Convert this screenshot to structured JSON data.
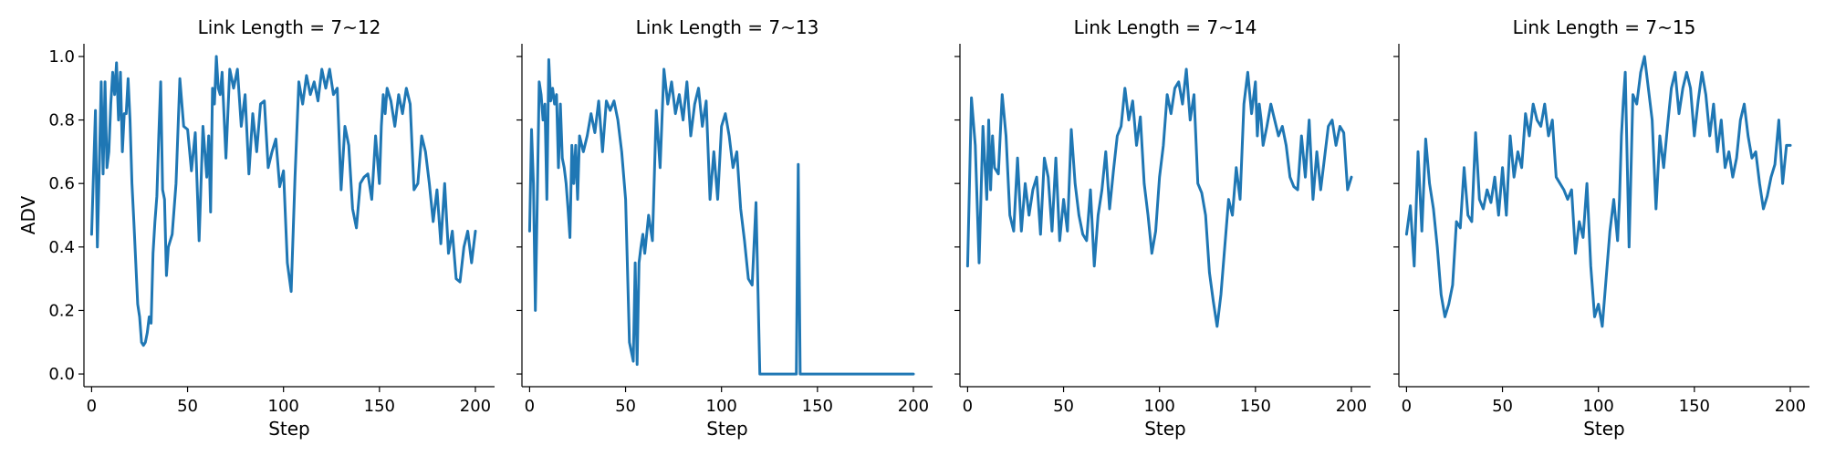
{
  "chart_data": [
    {
      "type": "line",
      "title": "Link Length = 7~12",
      "xlabel": "Step",
      "ylabel": "ADV",
      "xlim": [
        -4,
        210
      ],
      "ylim": [
        -0.04,
        1.04
      ],
      "xticks": [
        0,
        50,
        100,
        150,
        200
      ],
      "yticks": [
        0.0,
        0.2,
        0.4,
        0.6,
        0.8,
        1.0
      ],
      "xtick_labels": [
        "0",
        "50",
        "100",
        "150",
        "200"
      ],
      "ytick_labels": [
        "0.0",
        "0.2",
        "0.4",
        "0.6",
        "0.8",
        "1.0"
      ],
      "color": "#1f77b4",
      "series": [
        {
          "x": [
            0,
            2,
            3,
            4,
            5,
            6,
            7,
            8,
            9,
            10,
            11,
            12,
            13,
            14,
            15,
            16,
            17,
            18,
            19,
            20,
            21,
            22,
            23,
            24,
            25,
            26,
            27,
            28,
            29,
            30,
            31,
            32,
            33,
            34,
            35,
            36,
            37,
            38,
            39,
            40,
            42,
            44,
            46,
            48,
            50,
            52,
            54,
            56,
            58,
            60,
            61,
            62,
            63,
            64,
            65,
            66,
            67,
            68,
            70,
            72,
            74,
            76,
            78,
            80,
            82,
            84,
            86,
            88,
            90,
            92,
            94,
            96,
            98,
            100,
            102,
            104,
            106,
            108,
            110,
            112,
            114,
            116,
            118,
            120,
            122,
            124,
            126,
            128,
            130,
            132,
            134,
            136,
            138,
            140,
            142,
            144,
            146,
            148,
            150,
            151,
            152,
            153,
            154,
            156,
            158,
            160,
            162,
            164,
            166,
            168,
            170,
            172,
            174,
            176,
            178,
            180,
            182,
            184,
            186,
            188,
            190,
            192,
            194,
            196,
            198,
            200
          ],
          "values": [
            0.44,
            0.83,
            0.4,
            0.65,
            0.92,
            0.63,
            0.92,
            0.65,
            0.7,
            0.85,
            0.95,
            0.88,
            0.98,
            0.8,
            0.95,
            0.7,
            0.82,
            0.82,
            0.93,
            0.8,
            0.6,
            0.48,
            0.35,
            0.22,
            0.18,
            0.1,
            0.09,
            0.1,
            0.13,
            0.18,
            0.16,
            0.38,
            0.48,
            0.56,
            0.75,
            0.92,
            0.58,
            0.55,
            0.31,
            0.4,
            0.44,
            0.6,
            0.93,
            0.78,
            0.77,
            0.64,
            0.76,
            0.42,
            0.78,
            0.62,
            0.75,
            0.51,
            0.9,
            0.85,
            1.0,
            0.9,
            0.88,
            0.95,
            0.68,
            0.96,
            0.9,
            0.96,
            0.78,
            0.88,
            0.63,
            0.82,
            0.7,
            0.85,
            0.86,
            0.65,
            0.7,
            0.74,
            0.59,
            0.64,
            0.35,
            0.26,
            0.62,
            0.92,
            0.85,
            0.94,
            0.88,
            0.92,
            0.86,
            0.96,
            0.9,
            0.96,
            0.88,
            0.9,
            0.58,
            0.78,
            0.72,
            0.52,
            0.46,
            0.6,
            0.62,
            0.63,
            0.55,
            0.75,
            0.6,
            0.78,
            0.88,
            0.82,
            0.9,
            0.86,
            0.78,
            0.88,
            0.82,
            0.9,
            0.85,
            0.58,
            0.6,
            0.75,
            0.7,
            0.6,
            0.48,
            0.58,
            0.41,
            0.6,
            0.38,
            0.45,
            0.3,
            0.29,
            0.4,
            0.45,
            0.35,
            0.45
          ]
        }
      ]
    },
    {
      "type": "line",
      "title": "Link Length = 7~13",
      "xlabel": "Step",
      "ylabel": "",
      "xlim": [
        -4,
        210
      ],
      "ylim": [
        -0.04,
        1.04
      ],
      "xticks": [
        0,
        50,
        100,
        150,
        200
      ],
      "yticks": [
        0.0,
        0.2,
        0.4,
        0.6,
        0.8,
        1.0
      ],
      "xtick_labels": [
        "0",
        "50",
        "100",
        "150",
        "200"
      ],
      "ytick_labels": [],
      "color": "#1f77b4",
      "series": [
        {
          "x": [
            0,
            1,
            2,
            3,
            4,
            5,
            6,
            7,
            8,
            9,
            10,
            11,
            12,
            13,
            14,
            15,
            16,
            17,
            18,
            19,
            20,
            21,
            22,
            23,
            24,
            25,
            26,
            28,
            30,
            32,
            34,
            36,
            38,
            40,
            42,
            44,
            46,
            48,
            50,
            52,
            54,
            55,
            56,
            57,
            58,
            59,
            60,
            62,
            64,
            66,
            68,
            70,
            72,
            74,
            76,
            78,
            80,
            82,
            84,
            86,
            88,
            90,
            92,
            94,
            96,
            98,
            100,
            102,
            104,
            106,
            108,
            110,
            112,
            114,
            116,
            118,
            120,
            122,
            124,
            125,
            126,
            127,
            128,
            129,
            130,
            132,
            134,
            136,
            138,
            139,
            140,
            141,
            142,
            144,
            150,
            160,
            170,
            180,
            190,
            200
          ],
          "values": [
            0.45,
            0.77,
            0.6,
            0.2,
            0.55,
            0.92,
            0.88,
            0.8,
            0.85,
            0.55,
            0.99,
            0.86,
            0.9,
            0.85,
            0.88,
            0.65,
            0.85,
            0.68,
            0.65,
            0.6,
            0.52,
            0.43,
            0.72,
            0.6,
            0.72,
            0.55,
            0.75,
            0.7,
            0.75,
            0.82,
            0.76,
            0.86,
            0.7,
            0.86,
            0.83,
            0.86,
            0.8,
            0.7,
            0.55,
            0.1,
            0.04,
            0.35,
            0.03,
            0.35,
            0.4,
            0.44,
            0.38,
            0.5,
            0.42,
            0.83,
            0.65,
            0.96,
            0.85,
            0.92,
            0.82,
            0.88,
            0.8,
            0.92,
            0.75,
            0.85,
            0.9,
            0.78,
            0.86,
            0.55,
            0.7,
            0.55,
            0.78,
            0.82,
            0.75,
            0.65,
            0.7,
            0.52,
            0.42,
            0.3,
            0.28,
            0.54,
            0.0,
            0.0,
            0.0,
            0.0,
            0.0,
            0.0,
            0.0,
            0.0,
            0.0,
            0.0,
            0.0,
            0.0,
            0.0,
            0.0,
            0.66,
            0.0,
            0.0,
            0.0,
            0.0,
            0.0,
            0.0,
            0.0,
            0.0,
            0.0
          ]
        }
      ]
    },
    {
      "type": "line",
      "title": "Link Length = 7~14",
      "xlabel": "Step",
      "ylabel": "",
      "xlim": [
        -4,
        210
      ],
      "ylim": [
        -0.04,
        1.04
      ],
      "xticks": [
        0,
        50,
        100,
        150,
        200
      ],
      "yticks": [
        0.0,
        0.2,
        0.4,
        0.6,
        0.8,
        1.0
      ],
      "xtick_labels": [
        "0",
        "50",
        "100",
        "150",
        "200"
      ],
      "ytick_labels": [],
      "color": "#1f77b4",
      "series": [
        {
          "x": [
            0,
            2,
            4,
            6,
            8,
            10,
            11,
            12,
            13,
            14,
            16,
            18,
            20,
            22,
            24,
            26,
            28,
            30,
            32,
            34,
            36,
            38,
            40,
            42,
            44,
            46,
            48,
            50,
            52,
            54,
            56,
            58,
            60,
            62,
            64,
            66,
            68,
            70,
            72,
            74,
            76,
            78,
            80,
            82,
            84,
            86,
            88,
            90,
            92,
            94,
            96,
            98,
            100,
            102,
            104,
            106,
            108,
            110,
            112,
            114,
            116,
            118,
            120,
            122,
            124,
            126,
            128,
            130,
            132,
            134,
            136,
            138,
            140,
            142,
            144,
            146,
            148,
            150,
            151,
            152,
            153,
            154,
            156,
            158,
            160,
            162,
            164,
            166,
            168,
            170,
            172,
            174,
            176,
            178,
            180,
            182,
            184,
            186,
            188,
            190,
            192,
            194,
            196,
            198,
            200
          ],
          "values": [
            0.34,
            0.87,
            0.72,
            0.35,
            0.78,
            0.55,
            0.8,
            0.58,
            0.75,
            0.65,
            0.63,
            0.88,
            0.75,
            0.5,
            0.45,
            0.68,
            0.45,
            0.6,
            0.5,
            0.58,
            0.62,
            0.44,
            0.68,
            0.62,
            0.45,
            0.68,
            0.42,
            0.55,
            0.45,
            0.77,
            0.6,
            0.5,
            0.44,
            0.42,
            0.58,
            0.34,
            0.5,
            0.58,
            0.7,
            0.52,
            0.64,
            0.75,
            0.78,
            0.9,
            0.8,
            0.86,
            0.72,
            0.81,
            0.6,
            0.5,
            0.38,
            0.45,
            0.62,
            0.72,
            0.88,
            0.82,
            0.9,
            0.92,
            0.85,
            0.96,
            0.8,
            0.88,
            0.6,
            0.57,
            0.5,
            0.32,
            0.23,
            0.15,
            0.25,
            0.4,
            0.55,
            0.5,
            0.65,
            0.55,
            0.85,
            0.95,
            0.82,
            0.92,
            0.75,
            0.85,
            0.8,
            0.72,
            0.78,
            0.85,
            0.8,
            0.75,
            0.78,
            0.72,
            0.62,
            0.59,
            0.58,
            0.75,
            0.62,
            0.8,
            0.55,
            0.7,
            0.58,
            0.68,
            0.78,
            0.8,
            0.72,
            0.78,
            0.76,
            0.58,
            0.62
          ]
        }
      ]
    },
    {
      "type": "line",
      "title": "Link Length = 7~15",
      "xlabel": "Step",
      "ylabel": "",
      "xlim": [
        -4,
        210
      ],
      "ylim": [
        -0.04,
        1.04
      ],
      "xticks": [
        0,
        50,
        100,
        150,
        200
      ],
      "yticks": [
        0.0,
        0.2,
        0.4,
        0.6,
        0.8,
        1.0
      ],
      "xtick_labels": [
        "0",
        "50",
        "100",
        "150",
        "200"
      ],
      "ytick_labels": [],
      "color": "#1f77b4",
      "series": [
        {
          "x": [
            0,
            2,
            4,
            6,
            8,
            10,
            12,
            14,
            16,
            18,
            20,
            22,
            24,
            26,
            28,
            30,
            32,
            34,
            36,
            38,
            40,
            42,
            44,
            46,
            48,
            50,
            52,
            54,
            56,
            58,
            60,
            62,
            64,
            66,
            68,
            70,
            72,
            74,
            76,
            78,
            80,
            82,
            84,
            86,
            88,
            90,
            92,
            94,
            96,
            98,
            100,
            102,
            104,
            106,
            108,
            110,
            111,
            112,
            113,
            114,
            116,
            118,
            120,
            122,
            124,
            126,
            128,
            130,
            132,
            134,
            136,
            138,
            140,
            142,
            144,
            146,
            148,
            150,
            152,
            154,
            156,
            158,
            160,
            162,
            164,
            166,
            168,
            170,
            172,
            174,
            176,
            178,
            180,
            182,
            184,
            186,
            188,
            190,
            192,
            194,
            196,
            198,
            200
          ],
          "values": [
            0.44,
            0.53,
            0.34,
            0.7,
            0.45,
            0.74,
            0.6,
            0.52,
            0.4,
            0.25,
            0.18,
            0.22,
            0.28,
            0.48,
            0.46,
            0.65,
            0.5,
            0.48,
            0.76,
            0.55,
            0.52,
            0.58,
            0.54,
            0.62,
            0.5,
            0.65,
            0.5,
            0.75,
            0.62,
            0.7,
            0.65,
            0.82,
            0.75,
            0.85,
            0.8,
            0.78,
            0.85,
            0.75,
            0.8,
            0.62,
            0.6,
            0.58,
            0.55,
            0.58,
            0.38,
            0.48,
            0.43,
            0.6,
            0.34,
            0.18,
            0.22,
            0.15,
            0.3,
            0.45,
            0.55,
            0.42,
            0.55,
            0.75,
            0.86,
            0.95,
            0.4,
            0.88,
            0.85,
            0.95,
            1.0,
            0.9,
            0.8,
            0.52,
            0.75,
            0.65,
            0.78,
            0.9,
            0.95,
            0.82,
            0.9,
            0.95,
            0.9,
            0.75,
            0.86,
            0.95,
            0.88,
            0.75,
            0.85,
            0.7,
            0.8,
            0.65,
            0.7,
            0.62,
            0.68,
            0.8,
            0.85,
            0.75,
            0.68,
            0.7,
            0.6,
            0.52,
            0.56,
            0.62,
            0.66,
            0.8,
            0.6,
            0.72,
            0.72
          ]
        }
      ]
    }
  ]
}
